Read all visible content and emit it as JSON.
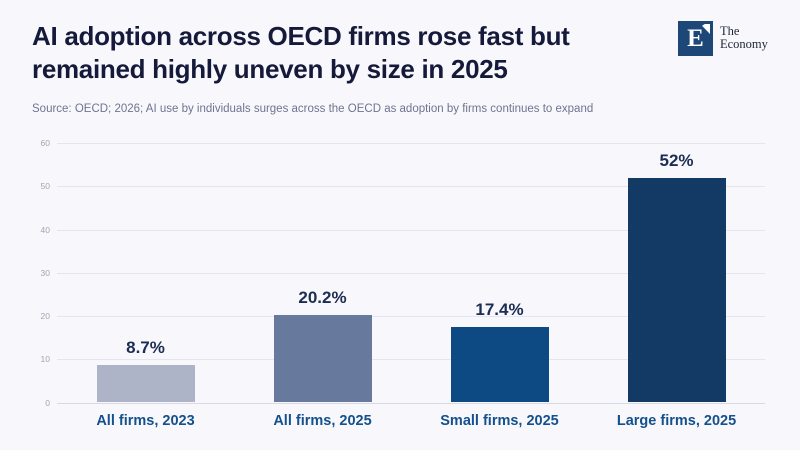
{
  "header": {
    "title_line1": "AI adoption across OECD firms rose fast but",
    "title_line2": "remained highly uneven by size in 2025",
    "source_line": "Source: OECD; 2026; AI use by individuals surges across the OECD as adoption by firms continues to expand"
  },
  "logo": {
    "monogram": "E",
    "name_line1": "The",
    "name_line2": "Economy",
    "square_color": "#1c4776"
  },
  "chart_data": {
    "type": "bar",
    "title": "AI adoption across OECD firms rose fast but remained highly uneven by size in 2025",
    "subtitle": "Source: OECD; 2026; AI use by individuals surges across the OECD as adoption by firms continues to expand",
    "categories": [
      "All firms, 2023",
      "All firms, 2025",
      "Small firms, 2025",
      "Large firms, 2025"
    ],
    "values": [
      8.7,
      20.2,
      17.4,
      52
    ],
    "value_labels": [
      "8.7%",
      "20.2%",
      "17.4%",
      "52%"
    ],
    "bar_colors": [
      "#aeb4c8",
      "#68799e",
      "#0d4a84",
      "#123a64"
    ],
    "y_ticks": [
      0,
      10,
      20,
      30,
      40,
      50,
      60
    ],
    "ylim": [
      0,
      60
    ],
    "grid": true,
    "legend": "none",
    "xlabel": "",
    "ylabel": ""
  },
  "colors": {
    "background": "#f8f8fc",
    "title_text": "#151a3b",
    "subtitle_text": "#6e7490",
    "tick_label": "#a0a5b5",
    "gridline": "#e3e6ef",
    "value_label": "#1c2d52",
    "category_label": "#14508c"
  }
}
